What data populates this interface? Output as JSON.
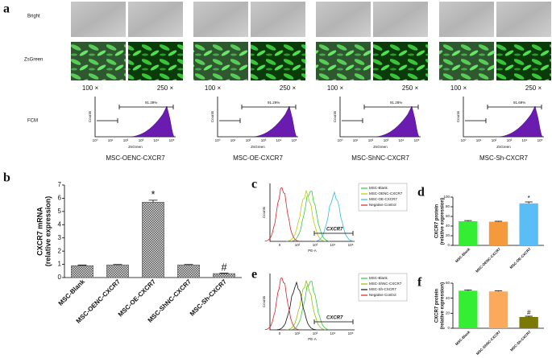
{
  "panel_a": {
    "label": "a",
    "row_labels": [
      "Bright",
      "ZsGreen",
      "FCM"
    ],
    "magnifications": [
      "100 ×",
      "250 ×"
    ],
    "y_label": "Counts",
    "x_label": "ZsGreen",
    "x_ticks": [
      "10⁰",
      "10¹",
      "10²",
      "10³",
      "10⁴",
      "10⁵"
    ],
    "groups": [
      {
        "name": "MSC-OENC-CXCR7",
        "percent": "91.39%"
      },
      {
        "name": "MSC-OE-CXCR7",
        "percent": "91.29%"
      },
      {
        "name": "MSC-ShNC-CXCR7",
        "percent": "91.28%"
      },
      {
        "name": "MSC-Sh-CXCR7",
        "percent": "91.69%"
      }
    ]
  },
  "chart_data": [
    {
      "type": "bar",
      "label": "b",
      "y_label": [
        "CXCR7 mRNA",
        "(relative expression)"
      ],
      "categories": [
        "MSC-Blank",
        "MSC-OENC-CXCR7",
        "MSC-OE-CXCR7",
        "MSC-ShNC-CXCR7",
        "MSC-Sh-CXCR7"
      ],
      "values": [
        0.9,
        0.95,
        5.7,
        0.95,
        0.3
      ],
      "errors": [
        0.04,
        0.04,
        0.15,
        0.04,
        0.03
      ],
      "annotations": [
        null,
        null,
        "*",
        null,
        "#"
      ],
      "color": "#555555",
      "hatch": true,
      "ylim": [
        0,
        7
      ],
      "yticks": [
        0,
        1,
        2,
        3,
        4,
        5,
        6,
        7
      ]
    },
    {
      "type": "bar",
      "label": "d",
      "y_label": [
        "CXCR7 protein",
        "(relative expression)"
      ],
      "categories": [
        "MSC-Blank",
        "MSC-OENC-CXCR7",
        "MSC-OE-CXCR7"
      ],
      "values": [
        50,
        49,
        87
      ],
      "errors": [
        1.5,
        1,
        3
      ],
      "annotations": [
        null,
        null,
        "*"
      ],
      "colors": [
        "#33ee33",
        "#f59a3c",
        "#5bbdf5"
      ],
      "ylim": [
        0,
        100
      ],
      "yticks": [
        0,
        20,
        40,
        60,
        80,
        100
      ]
    },
    {
      "type": "bar",
      "label": "f",
      "y_label": [
        "CXCR7 protein",
        "(relative expression)"
      ],
      "categories": [
        "MSC-Blank",
        "MSC-ShNC-CXCR7",
        "MSC-Sh-CXCR7"
      ],
      "values": [
        50,
        49,
        15
      ],
      "errors": [
        1,
        0.8,
        1
      ],
      "annotations": [
        null,
        null,
        "#"
      ],
      "colors": [
        "#33ee33",
        "#fbaa5c",
        "#7a7a00"
      ],
      "ylim": [
        0,
        60
      ],
      "yticks": [
        0,
        20,
        40,
        60
      ]
    }
  ],
  "flow_panels": [
    {
      "label": "c",
      "y_label": "Counts",
      "x_label": "PE-A",
      "gate": "CXCR7",
      "x_ticks": [
        "0",
        "10²",
        "10³",
        "10⁴",
        "10⁵"
      ],
      "legend": [
        "MSC-Blank",
        "MSC-OENC-CXCR7",
        "MSC-OE-CXCR7",
        "Negative Control"
      ],
      "legend_colors": [
        "#33cc33",
        "#bbcc00",
        "#33bbdd",
        "#dd2222"
      ]
    },
    {
      "label": "e",
      "y_label": "Counts",
      "x_label": "PE-A",
      "gate": "CXCR7",
      "x_ticks": [
        "0",
        "10²",
        "10³",
        "10⁴",
        "10⁵"
      ],
      "legend": [
        "MSC-Blank",
        "MSC-ShNC-CXCR7",
        "MSC-Sh-CXCR7",
        "Negative Control"
      ],
      "legend_colors": [
        "#33cc33",
        "#99bb00",
        "#111111",
        "#dd2222"
      ]
    }
  ]
}
